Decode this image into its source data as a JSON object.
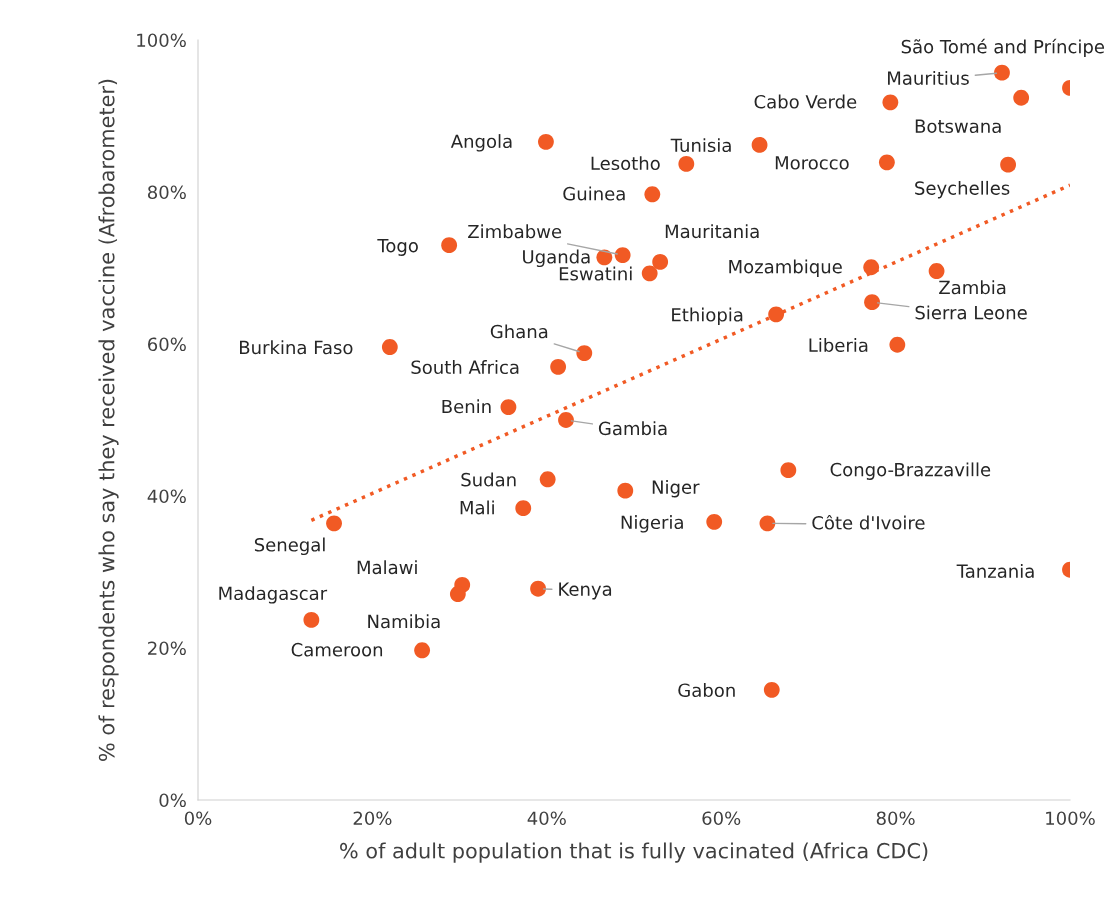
{
  "chart_data": {
    "type": "scatter",
    "xlabel": "% of adult population that is fully vacinated (Africa CDC)",
    "ylabel": "% of respondents who say they received vaccine (Afrobarometer)",
    "xlim": [
      0,
      100
    ],
    "ylim": [
      0,
      100
    ],
    "xticks": [
      {
        "value": 0,
        "label": "0%"
      },
      {
        "value": 20,
        "label": "20%"
      },
      {
        "value": 40,
        "label": "40%"
      },
      {
        "value": 60,
        "label": "60%"
      },
      {
        "value": 80,
        "label": "80%"
      },
      {
        "value": 100,
        "label": "100%"
      }
    ],
    "yticks": [
      {
        "value": 0,
        "label": "0%"
      },
      {
        "value": 20,
        "label": "20%"
      },
      {
        "value": 40,
        "label": "40%"
      },
      {
        "value": 60,
        "label": "60%"
      },
      {
        "value": 80,
        "label": "80%"
      },
      {
        "value": 100,
        "label": "100%"
      }
    ],
    "grid": false,
    "legend": false,
    "series": [
      {
        "color": "#f15a24",
        "marker": "circle",
        "x": [
          100,
          92.2,
          94.4,
          79.4,
          39.9,
          64.4,
          56.0,
          79.0,
          92.9,
          52.1,
          28.8,
          48.7,
          46.6,
          53.0,
          51.8,
          77.2,
          84.7,
          77.3,
          66.3,
          80.2,
          22.0,
          44.3,
          41.3,
          35.6,
          42.2,
          67.7,
          40.1,
          49.0,
          37.3,
          15.6,
          59.2,
          65.3,
          100,
          30.3,
          39.0,
          29.8,
          13.0,
          25.7,
          65.8
        ],
        "values": [
          93.7,
          95.7,
          92.4,
          91.8,
          86.6,
          86.2,
          83.7,
          83.9,
          83.6,
          79.7,
          73.0,
          71.7,
          71.4,
          70.8,
          69.3,
          70.1,
          69.6,
          65.5,
          63.9,
          59.9,
          59.6,
          58.8,
          57.0,
          51.7,
          50.0,
          43.4,
          42.2,
          40.7,
          38.4,
          36.4,
          36.6,
          36.4,
          30.3,
          28.3,
          27.8,
          27.1,
          23.7,
          19.7,
          14.5
        ]
      },
      {
        "type": "line",
        "color": "#f15a24",
        "marker": "none",
        "line_style": "dotted",
        "x": [
          13,
          100
        ],
        "values": [
          36.8,
          80.9
        ]
      }
    ],
    "annotations": [
      {
        "text": "São Tomé and Príncipe",
        "x": 100,
        "y": 93.7
      },
      {
        "text": "Mauritius",
        "x": 92.2,
        "y": 95.7
      },
      {
        "text": "Botswana",
        "x": 94.4,
        "y": 92.4
      },
      {
        "text": "Cabo Verde",
        "x": 79.4,
        "y": 91.8
      },
      {
        "text": "Angola",
        "x": 39.9,
        "y": 86.6
      },
      {
        "text": "Tunisia",
        "x": 64.4,
        "y": 86.2
      },
      {
        "text": "Lesotho",
        "x": 56.0,
        "y": 83.7
      },
      {
        "text": "Morocco",
        "x": 79.0,
        "y": 83.9
      },
      {
        "text": "Seychelles",
        "x": 92.9,
        "y": 83.6
      },
      {
        "text": "Guinea",
        "x": 52.1,
        "y": 79.7
      },
      {
        "text": "Togo",
        "x": 28.8,
        "y": 73.0
      },
      {
        "text": "Zimbabwe",
        "x": 48.7,
        "y": 71.7
      },
      {
        "text": "Uganda",
        "x": 46.6,
        "y": 71.4
      },
      {
        "text": "Mauritania",
        "x": 53.0,
        "y": 70.8
      },
      {
        "text": "Eswatini",
        "x": 51.8,
        "y": 69.3
      },
      {
        "text": "Mozambique",
        "x": 77.2,
        "y": 70.1
      },
      {
        "text": "Zambia",
        "x": 84.7,
        "y": 69.6
      },
      {
        "text": "Sierra Leone",
        "x": 77.3,
        "y": 65.5
      },
      {
        "text": "Ethiopia",
        "x": 66.3,
        "y": 63.9
      },
      {
        "text": "Liberia",
        "x": 80.2,
        "y": 59.9
      },
      {
        "text": "Burkina Faso",
        "x": 22.0,
        "y": 59.6
      },
      {
        "text": "Ghana",
        "x": 44.3,
        "y": 58.8
      },
      {
        "text": "South Africa",
        "x": 41.3,
        "y": 57.0
      },
      {
        "text": "Benin",
        "x": 35.6,
        "y": 51.7
      },
      {
        "text": "Gambia",
        "x": 42.2,
        "y": 50.0
      },
      {
        "text": "Congo-Brazzaville",
        "x": 67.7,
        "y": 43.4
      },
      {
        "text": "Sudan",
        "x": 40.1,
        "y": 42.2
      },
      {
        "text": "Niger",
        "x": 49.0,
        "y": 40.7
      },
      {
        "text": "Mali",
        "x": 37.3,
        "y": 38.4
      },
      {
        "text": "Senegal",
        "x": 15.6,
        "y": 36.4
      },
      {
        "text": "Nigeria",
        "x": 59.2,
        "y": 36.6
      },
      {
        "text": "Côte d'Ivoire",
        "x": 65.3,
        "y": 36.4
      },
      {
        "text": "Tanzania",
        "x": 100,
        "y": 30.3
      },
      {
        "text": "Malawi",
        "x": 30.3,
        "y": 28.3
      },
      {
        "text": "Kenya",
        "x": 39.0,
        "y": 27.8
      },
      {
        "text": "Namibia",
        "x": 29.8,
        "y": 27.1
      },
      {
        "text": "Madagascar",
        "x": 13.0,
        "y": 23.7
      },
      {
        "text": "Cameroon",
        "x": 25.7,
        "y": 19.7
      },
      {
        "text": "Gabon",
        "x": 65.8,
        "y": 14.5
      }
    ]
  }
}
